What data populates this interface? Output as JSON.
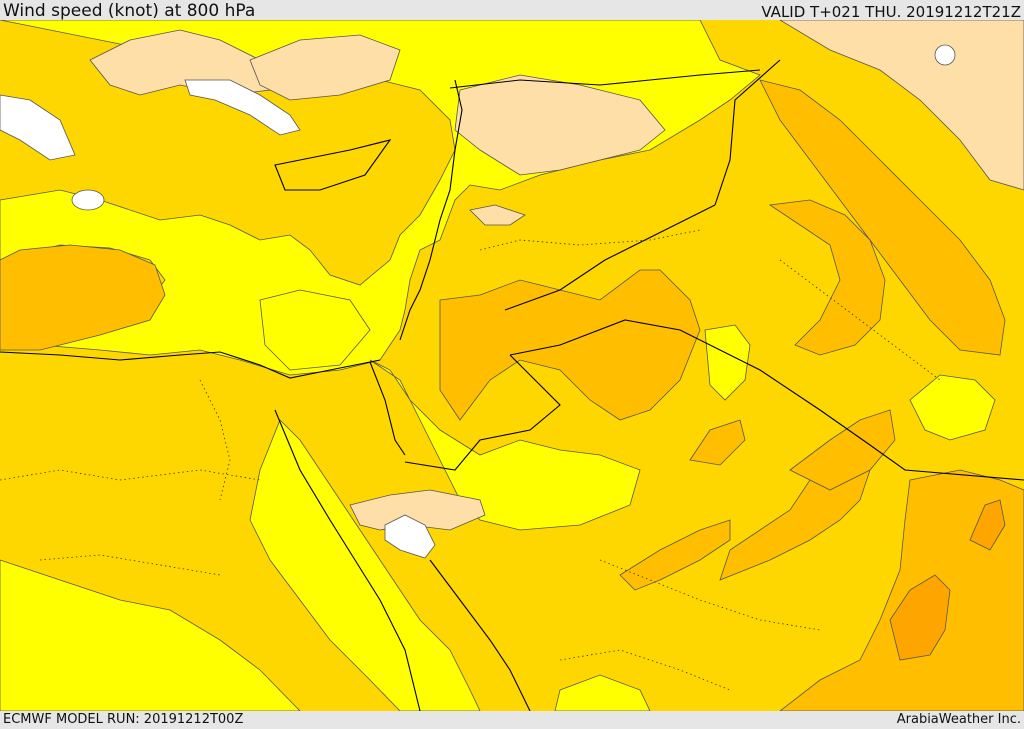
{
  "header": {
    "title": "Wind speed (knot) at 800 hPa",
    "valid": "VALID T+021 THU. 20191212T21Z"
  },
  "footer": {
    "model_run": "ECMWF MODEL RUN: 20191212T00Z",
    "credit": "ArabiaWeather Inc."
  },
  "colors": {
    "lowest": "#ffffff",
    "low": "#ffdfa8",
    "moderate": "#ffff00",
    "fresh": "#ffd700",
    "strong": "#ffbf00",
    "stronger": "#ffa500",
    "contour": "#444444",
    "border": "#000000"
  }
}
